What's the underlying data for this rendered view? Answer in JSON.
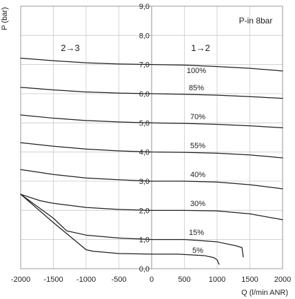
{
  "chart_data": {
    "type": "line",
    "title": "",
    "xlabel": "Q (l/min ANR)",
    "ylabel": "P (bar)",
    "xlim": [
      -2000,
      2000
    ],
    "ylim": [
      0,
      9
    ],
    "grid": true,
    "x_ticks": [
      "-2000",
      "-1500",
      "-1000",
      "-500",
      "0",
      "500",
      "1000",
      "1500",
      "2000"
    ],
    "y_ticks": [
      "0,0",
      "1,0",
      "2,0",
      "3,0",
      "4,0",
      "5,0",
      "6,0",
      "7,0",
      "8,0",
      "9,0"
    ],
    "annotations": {
      "inlet_pressure": "P-in 8bar",
      "region_left": "2→3",
      "region_right": "1→2"
    },
    "series": [
      {
        "name": "100%",
        "points": [
          [
            -2000,
            7.22
          ],
          [
            -1500,
            7.13
          ],
          [
            -1000,
            7.06
          ],
          [
            -500,
            7.02
          ],
          [
            0,
            7.0
          ],
          [
            500,
            6.98
          ],
          [
            1000,
            6.93
          ],
          [
            1500,
            6.87
          ],
          [
            2000,
            6.78
          ]
        ]
      },
      {
        "name": "85%",
        "points": [
          [
            -2000,
            6.22
          ],
          [
            -1500,
            6.13
          ],
          [
            -1000,
            6.06
          ],
          [
            -500,
            6.02
          ],
          [
            0,
            6.0
          ],
          [
            500,
            5.98
          ],
          [
            1000,
            5.95
          ],
          [
            1500,
            5.9
          ],
          [
            2000,
            5.84
          ]
        ]
      },
      {
        "name": "70%",
        "points": [
          [
            -2000,
            5.27
          ],
          [
            -1500,
            5.16
          ],
          [
            -1000,
            5.08
          ],
          [
            -500,
            5.03
          ],
          [
            0,
            5.0
          ],
          [
            500,
            4.98
          ],
          [
            1000,
            4.95
          ],
          [
            1500,
            4.9
          ],
          [
            2000,
            4.83
          ]
        ]
      },
      {
        "name": "55%",
        "points": [
          [
            -2000,
            4.32
          ],
          [
            -1500,
            4.2
          ],
          [
            -1000,
            4.1
          ],
          [
            -500,
            4.04
          ],
          [
            0,
            4.0
          ],
          [
            500,
            3.99
          ],
          [
            1000,
            3.96
          ],
          [
            1500,
            3.9
          ],
          [
            2000,
            3.8
          ]
        ]
      },
      {
        "name": "40%",
        "points": [
          [
            -2000,
            3.4
          ],
          [
            -1500,
            3.23
          ],
          [
            -1000,
            3.11
          ],
          [
            -500,
            3.05
          ],
          [
            0,
            3.0
          ],
          [
            500,
            3.0
          ],
          [
            1000,
            2.97
          ],
          [
            1500,
            2.88
          ],
          [
            2000,
            2.74
          ]
        ]
      },
      {
        "name": "30%",
        "points": [
          [
            -2000,
            2.55
          ],
          [
            -1700,
            2.33
          ],
          [
            -1500,
            2.24
          ],
          [
            -1000,
            2.1
          ],
          [
            -500,
            2.03
          ],
          [
            0,
            2.0
          ],
          [
            500,
            2.0
          ],
          [
            1000,
            1.98
          ],
          [
            1500,
            1.88
          ],
          [
            2000,
            1.68
          ]
        ]
      },
      {
        "name": "15%",
        "points": [
          [
            -2000,
            2.55
          ],
          [
            -1500,
            1.73
          ],
          [
            -1300,
            1.3
          ],
          [
            -1000,
            1.15
          ],
          [
            -500,
            1.05
          ],
          [
            0,
            1.0
          ],
          [
            500,
            1.0
          ],
          [
            1000,
            0.92
          ],
          [
            1300,
            0.78
          ],
          [
            1380,
            0.72
          ],
          [
            1400,
            0.4
          ]
        ]
      },
      {
        "name": "5%",
        "points": [
          [
            -2000,
            2.55
          ],
          [
            -1500,
            1.58
          ],
          [
            -1000,
            0.65
          ],
          [
            -900,
            0.6
          ],
          [
            -500,
            0.52
          ],
          [
            0,
            0.5
          ],
          [
            400,
            0.5
          ],
          [
            800,
            0.45
          ],
          [
            950,
            0.38
          ],
          [
            1000,
            0.3
          ],
          [
            1030,
            0.15
          ]
        ]
      }
    ]
  }
}
